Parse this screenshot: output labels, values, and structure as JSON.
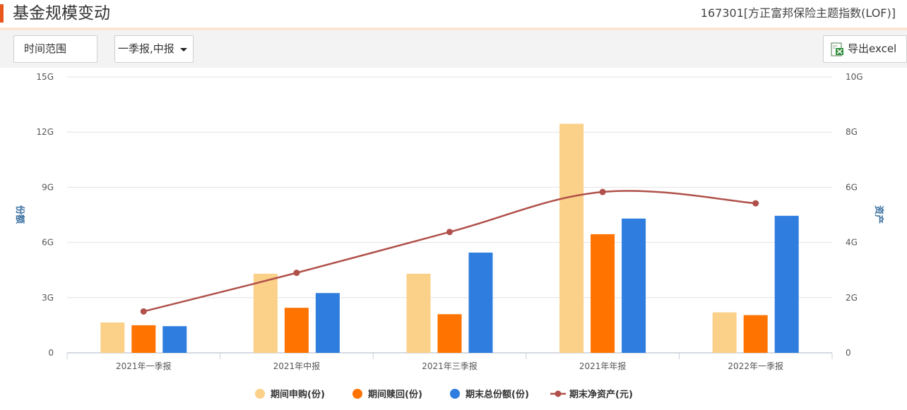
{
  "header": {
    "title": "基金规模变动",
    "fund": "167301[方正富邦保险主题指数(LOF)]"
  },
  "toolbar": {
    "range_label": "时间范围",
    "period_value": "一季报,中报",
    "export_label": "导出excel"
  },
  "colors": {
    "accent": "#e8581c",
    "purchase": "#fbd089",
    "redeem": "#ff7300",
    "shares": "#2e7ddf",
    "nav": "#b0504a"
  },
  "chart_data": {
    "type": "bar",
    "categories": [
      "2021年一季报",
      "2021年中报",
      "2021年三季报",
      "2021年年报",
      "2022年一季报"
    ],
    "series": [
      {
        "name": "期间申购(份)",
        "axis": "left",
        "kind": "bar",
        "values": [
          1.65,
          4.3,
          4.3,
          12.45,
          2.2
        ]
      },
      {
        "name": "期间赎回(份)",
        "axis": "left",
        "kind": "bar",
        "values": [
          1.5,
          2.45,
          2.1,
          6.45,
          2.05
        ]
      },
      {
        "name": "期末总份额(份)",
        "axis": "left",
        "kind": "bar",
        "values": [
          1.45,
          3.25,
          5.45,
          7.3,
          7.45
        ]
      },
      {
        "name": "期末净资产(元)",
        "axis": "right",
        "kind": "line",
        "values": [
          1.5,
          2.9,
          4.38,
          5.83,
          5.42
        ]
      }
    ],
    "ylabel": "份额",
    "y2label": "资产",
    "ylim": [
      0,
      15
    ],
    "y2lim": [
      0,
      10
    ],
    "yticks": [
      "0",
      "3G",
      "6G",
      "9G",
      "12G",
      "15G"
    ],
    "y2ticks": [
      "0",
      "2G",
      "4G",
      "6G",
      "8G",
      "10G"
    ],
    "unit": "G",
    "grid": true,
    "legend": "bottom-center"
  }
}
